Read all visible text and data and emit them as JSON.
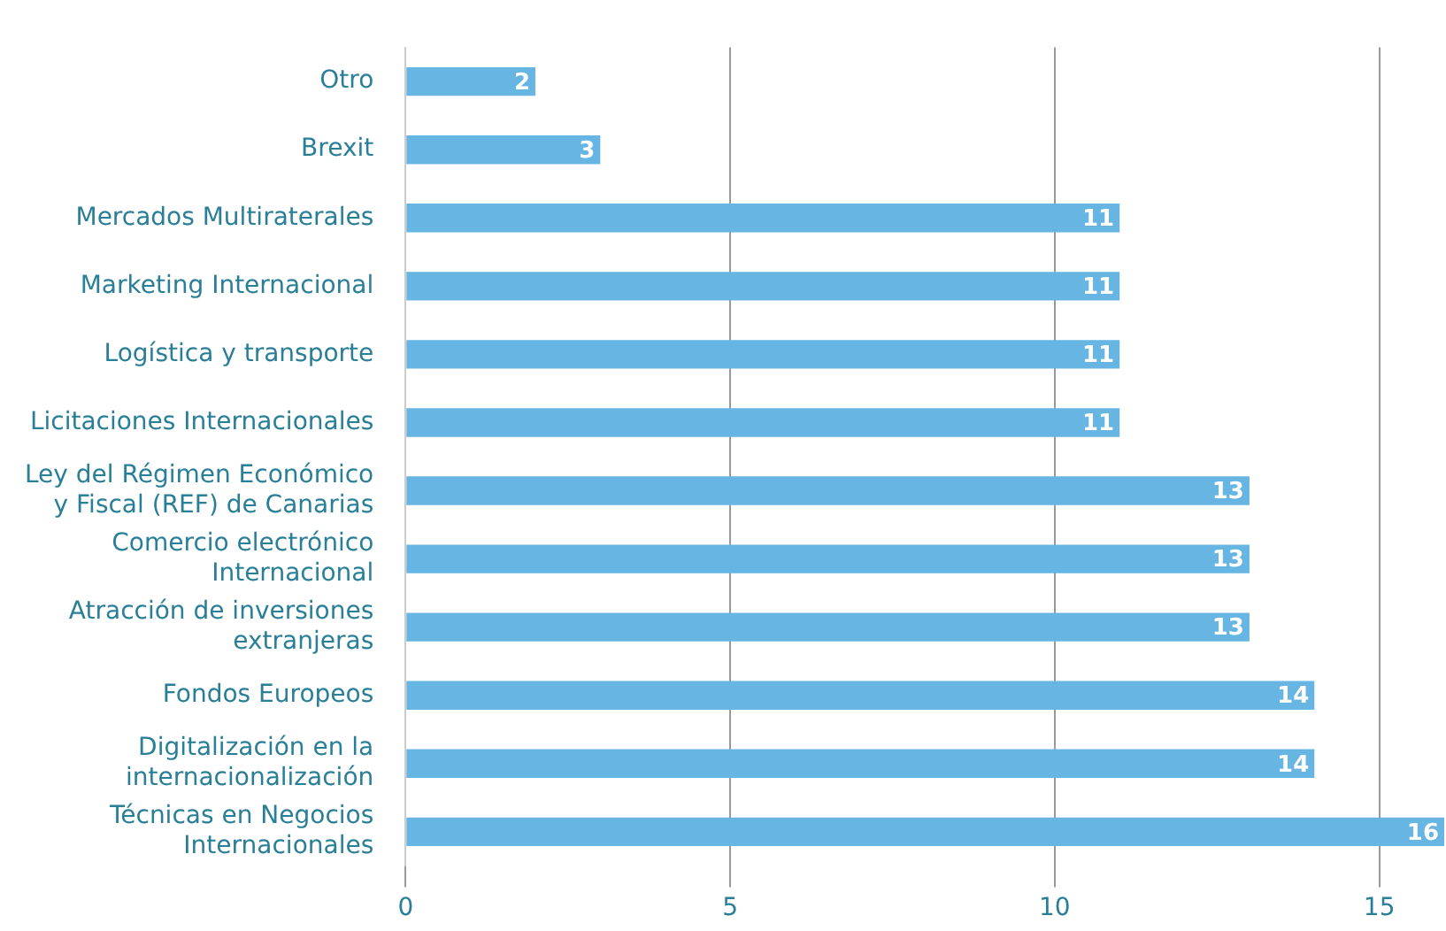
{
  "chart_data": {
    "type": "bar",
    "orientation": "horizontal",
    "categories": [
      "Otro",
      "Brexit",
      "Mercados Multiraterales",
      "Marketing Internacional",
      "Logística y transporte",
      "Licitaciones Internacionales",
      "Ley del Régimen Económico\ny Fiscal (REF) de Canarias",
      "Comercio electrónico\nInternacional",
      "Atracción de inversiones\nextranjeras",
      "Fondos Europeos",
      "Digitalización en la\ninternacionalización",
      "Técnicas en Negocios\nInternacionales"
    ],
    "values": [
      2,
      3,
      11,
      11,
      11,
      11,
      13,
      13,
      13,
      14,
      14,
      16
    ],
    "color": "#66b5e3",
    "xlim": [
      0,
      16
    ],
    "xticks": [
      0,
      5,
      10,
      15
    ],
    "grid": "x",
    "legend": false,
    "data_labels": true
  }
}
